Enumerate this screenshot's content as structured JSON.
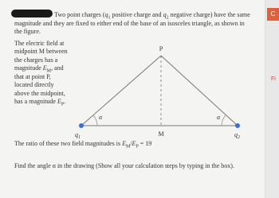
{
  "problem": {
    "intro": [
      "Two point charges (",
      "q",
      "1",
      " positive charge and ",
      "q",
      "2",
      " negative charge) have the same magnitude and they are fixed to either end of the base of an isosceles triangle, as shown in the figure."
    ],
    "body": [
      "The electric field at midpoint M between the charges has a magnitude ",
      "E",
      "M",
      ", and that at point P, located directly above the midpoint, has a magnitude ",
      "E",
      "P",
      "."
    ],
    "ratio": [
      "The ratio of these two field magnitudes is ",
      "E",
      "M",
      "/",
      "E",
      "P",
      " = 19"
    ],
    "question": "Find the angle α in the drawing (Show all your calculation steps by typing in the box).",
    "figure": {
      "apex": "P",
      "left_angle": "α",
      "right_angle": "α",
      "left_charge": "q",
      "left_charge_sub": "1",
      "right_charge": "q",
      "right_charge_sub": "2",
      "midpoint": "M"
    },
    "side": {
      "button": "C",
      "label": "Fi"
    }
  }
}
